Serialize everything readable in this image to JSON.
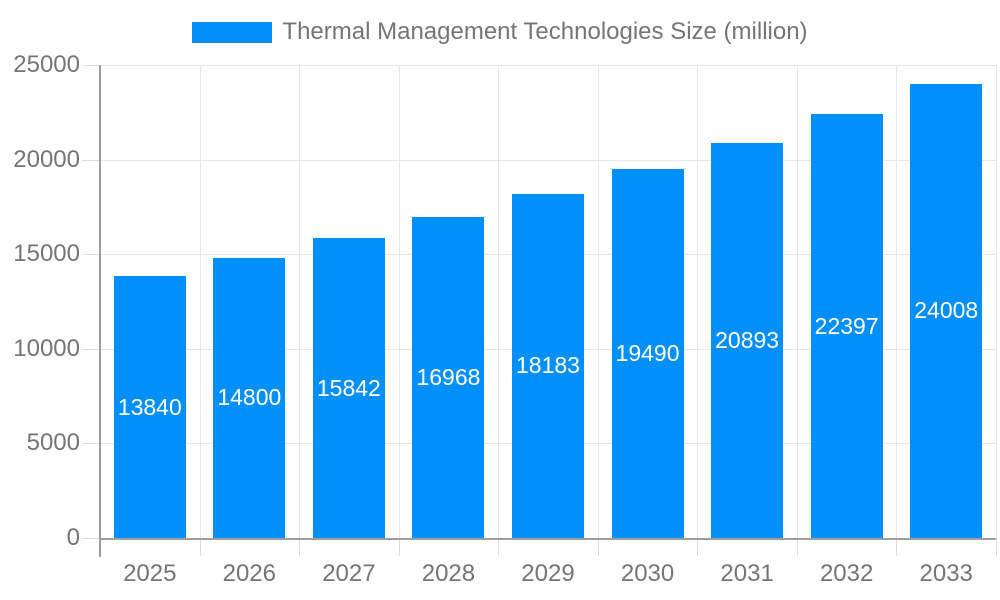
{
  "chart_data": {
    "type": "bar",
    "title": "Thermal Management Technologies Size (million)",
    "legend": {
      "position": "top",
      "entries": [
        "Thermal Management Technologies Size (million)"
      ]
    },
    "categories": [
      "2025",
      "2026",
      "2027",
      "2028",
      "2029",
      "2030",
      "2031",
      "2032",
      "2033"
    ],
    "values": [
      13840,
      14800,
      15842,
      16968,
      18183,
      19490,
      20893,
      22397,
      24008
    ],
    "xlabel": "",
    "ylabel": "",
    "ylim": [
      0,
      25000
    ],
    "yticks": [
      0,
      5000,
      10000,
      15000,
      20000,
      25000
    ],
    "grid": "both",
    "bar_labels_inside": true,
    "colors": {
      "bar": "#008FFB",
      "bar_label": "#ffffff",
      "axis_text": "#757575",
      "legend_text": "#757575",
      "grid_line": "#e6e6e6",
      "tick_line": "#dcdcdc",
      "axis_line": "#9e9e9e",
      "background": "#ffffff"
    }
  }
}
